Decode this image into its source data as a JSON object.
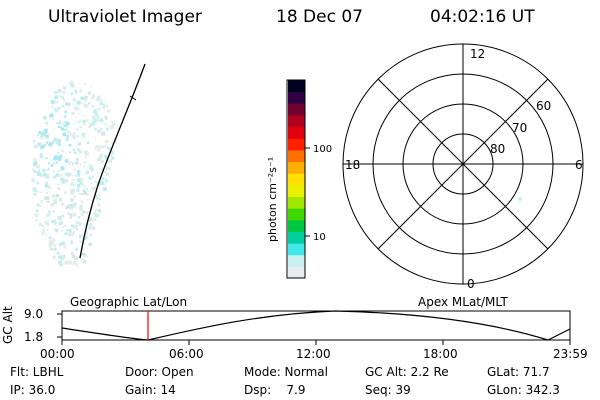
{
  "header": {
    "title": "Ultraviolet Imager",
    "date": "18 Dec 07",
    "time": "04:02:16 UT"
  },
  "colorbar": {
    "label": "photon cm⁻²s⁻¹",
    "ticks": [
      "100",
      "10"
    ],
    "colors": [
      "#e8ecf0",
      "#c8f0f0",
      "#40e8e8",
      "#00d0a0",
      "#00c840",
      "#40d800",
      "#a0e800",
      "#e8f000",
      "#ffe000",
      "#ffb000",
      "#ff7000",
      "#ff2000",
      "#e00010",
      "#b00020",
      "#700030",
      "#300040",
      "#000020"
    ]
  },
  "polar": {
    "labels": {
      "top": "12",
      "bottom": "0",
      "left": "18",
      "right": "6"
    },
    "lat_labels": [
      "60",
      "70",
      "80"
    ]
  },
  "timeline": {
    "left_title": "Geographic Lat/Lon",
    "right_title": "Apex MLat/MLT",
    "y_axis_label": "GC Alt",
    "y_ticks": [
      "9.0",
      "1.8"
    ],
    "x_ticks": [
      "00:00",
      "06:00",
      "12:00",
      "18:00",
      "23:59"
    ],
    "marker_color": "#ff0000"
  },
  "status": {
    "row1": {
      "flt": "Flt: LBHL",
      "door": "Door: Open",
      "mode": "Mode: Normal",
      "gcalt": "GC Alt: 2.2 Re",
      "glat": "GLat: 71.7"
    },
    "row2": {
      "ip": "IP: 36.0",
      "gain": "Gain: 14",
      "dsp": "Dsp:    7.9",
      "seq": "Seq: 39",
      "glon": "GLon: 342.3"
    }
  }
}
